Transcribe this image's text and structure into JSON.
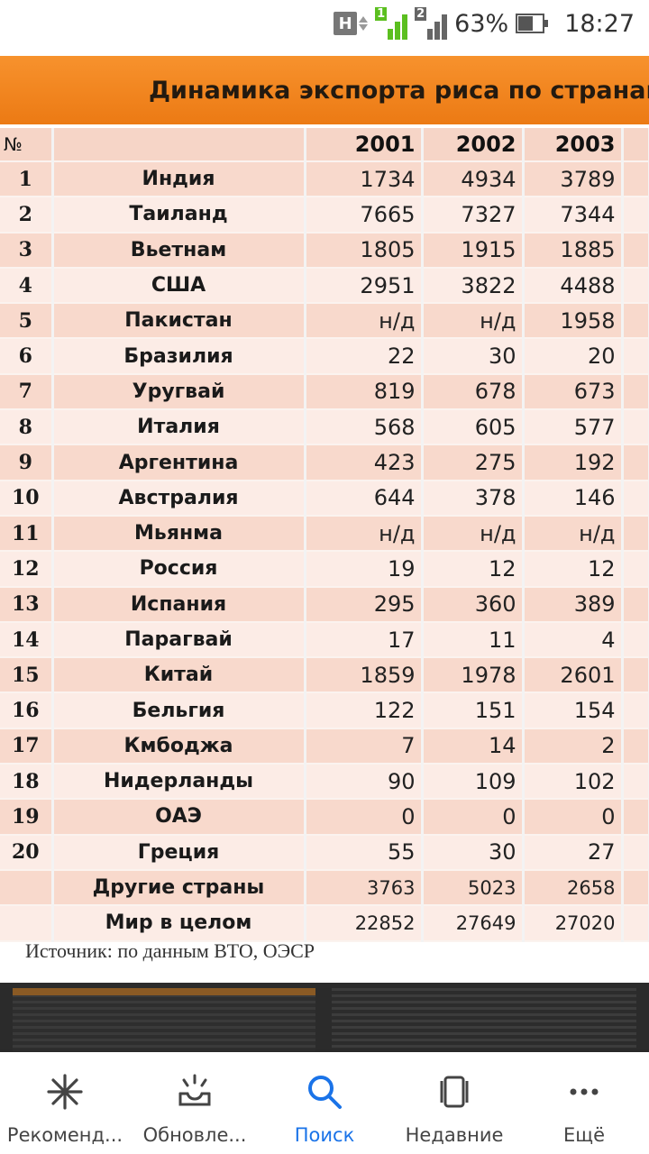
{
  "status_bar": {
    "network_letter": "H",
    "sim1_label": "1",
    "sim2_label": "2",
    "battery_percent": "63%",
    "battery_level": 0.63,
    "time": "18:27",
    "colors": {
      "sim1": "#5bbf1f",
      "sim2": "#666666"
    }
  },
  "image": {
    "title": "Динамика экспорта риса по странам",
    "header": {
      "number": "№",
      "name": "",
      "years": [
        "2001",
        "2002",
        "2003"
      ]
    },
    "rows": [
      {
        "num": "1",
        "country": "Индия",
        "v2001": "1734",
        "v2002": "4934",
        "v2003": "3789"
      },
      {
        "num": "2",
        "country": "Таиланд",
        "v2001": "7665",
        "v2002": "7327",
        "v2003": "7344"
      },
      {
        "num": "3",
        "country": "Вьетнам",
        "v2001": "1805",
        "v2002": "1915",
        "v2003": "1885"
      },
      {
        "num": "4",
        "country": "США",
        "v2001": "2951",
        "v2002": "3822",
        "v2003": "4488"
      },
      {
        "num": "5",
        "country": "Пакистан",
        "v2001": "н/д",
        "v2002": "н/д",
        "v2003": "1958"
      },
      {
        "num": "6",
        "country": "Бразилия",
        "v2001": "22",
        "v2002": "30",
        "v2003": "20"
      },
      {
        "num": "7",
        "country": "Уругвай",
        "v2001": "819",
        "v2002": "678",
        "v2003": "673"
      },
      {
        "num": "8",
        "country": "Италия",
        "v2001": "568",
        "v2002": "605",
        "v2003": "577"
      },
      {
        "num": "9",
        "country": "Аргентина",
        "v2001": "423",
        "v2002": "275",
        "v2003": "192"
      },
      {
        "num": "10",
        "country": "Австралия",
        "v2001": "644",
        "v2002": "378",
        "v2003": "146"
      },
      {
        "num": "11",
        "country": "Мьянма",
        "v2001": "н/д",
        "v2002": "н/д",
        "v2003": "н/д"
      },
      {
        "num": "12",
        "country": "Россия",
        "v2001": "19",
        "v2002": "12",
        "v2003": "12"
      },
      {
        "num": "13",
        "country": "Испания",
        "v2001": "295",
        "v2002": "360",
        "v2003": "389"
      },
      {
        "num": "14",
        "country": "Парагвай",
        "v2001": "17",
        "v2002": "11",
        "v2003": "4"
      },
      {
        "num": "15",
        "country": "Китай",
        "v2001": "1859",
        "v2002": "1978",
        "v2003": "2601"
      },
      {
        "num": "16",
        "country": "Бельгия",
        "v2001": "122",
        "v2002": "151",
        "v2003": "154"
      },
      {
        "num": "17",
        "country": "Кмбоджа",
        "v2001": "7",
        "v2002": "14",
        "v2003": "2"
      },
      {
        "num": "18",
        "country": "Нидерланды",
        "v2001": "90",
        "v2002": "109",
        "v2003": "102"
      },
      {
        "num": "19",
        "country": "ОАЭ",
        "v2001": "0",
        "v2002": "0",
        "v2003": "0"
      },
      {
        "num": "20",
        "country": "Греция",
        "v2001": "55",
        "v2002": "30",
        "v2003": "27"
      },
      {
        "num": "",
        "country": "Другие страны",
        "v2001": "3763",
        "v2002": "5023",
        "v2003": "2658"
      },
      {
        "num": "",
        "country": "Мир в целом",
        "v2001": "22852",
        "v2002": "27649",
        "v2003": "27020"
      }
    ],
    "source": "Источник: по данным ВТО, ОЭСР",
    "colors": {
      "banner": "#f28a22",
      "row_odd": "#f8d9cc",
      "row_even": "#fcece6"
    }
  },
  "bottom_nav": {
    "items": [
      {
        "label": "Рекоменд...",
        "icon": "asterisk-icon",
        "active": false
      },
      {
        "label": "Обновле...",
        "icon": "updates-tray-icon",
        "active": false
      },
      {
        "label": "Поиск",
        "icon": "search-icon",
        "active": true
      },
      {
        "label": "Недавние",
        "icon": "recent-cards-icon",
        "active": false
      },
      {
        "label": "Ещё",
        "icon": "more-dots-icon",
        "active": false
      }
    ],
    "colors": {
      "active": "#1a73e8",
      "inactive": "#444444"
    }
  }
}
